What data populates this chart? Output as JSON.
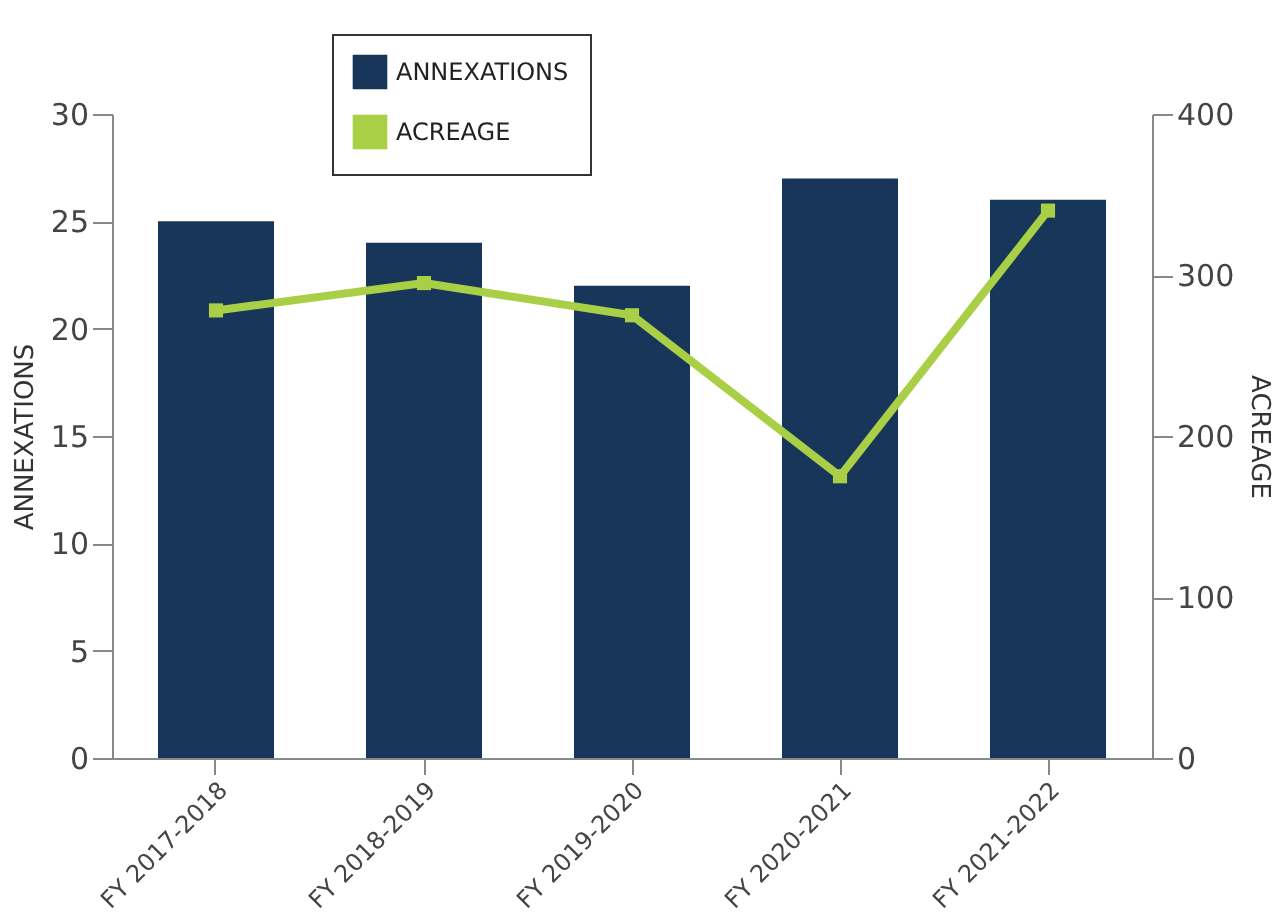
{
  "chart_data": {
    "type": "bar",
    "categories": [
      "FY 2017-2018",
      "FY 2018-2019",
      "FY 2019-2020",
      "FY 2020-2021",
      "FY 2021-2022"
    ],
    "series": [
      {
        "name": "ANNEXATIONS",
        "color": "#18355a",
        "values": [
          25,
          24,
          22,
          27,
          26
        ]
      },
      {
        "name": "ACREAGE",
        "type": "line",
        "axis": "y2",
        "color": "#a8cf45",
        "values": [
          278,
          295,
          275,
          175,
          340
        ]
      }
    ],
    "ylabel": "ANNEXATIONS",
    "y2label": "ACREAGE",
    "ylim": [
      0,
      30
    ],
    "yticks": [
      0,
      5,
      10,
      15,
      20,
      25,
      30
    ],
    "y2lim": [
      0,
      400
    ],
    "y2ticks": [
      0,
      100,
      200,
      300,
      400
    ],
    "legend": "top left",
    "marker": "square",
    "grid": false
  }
}
